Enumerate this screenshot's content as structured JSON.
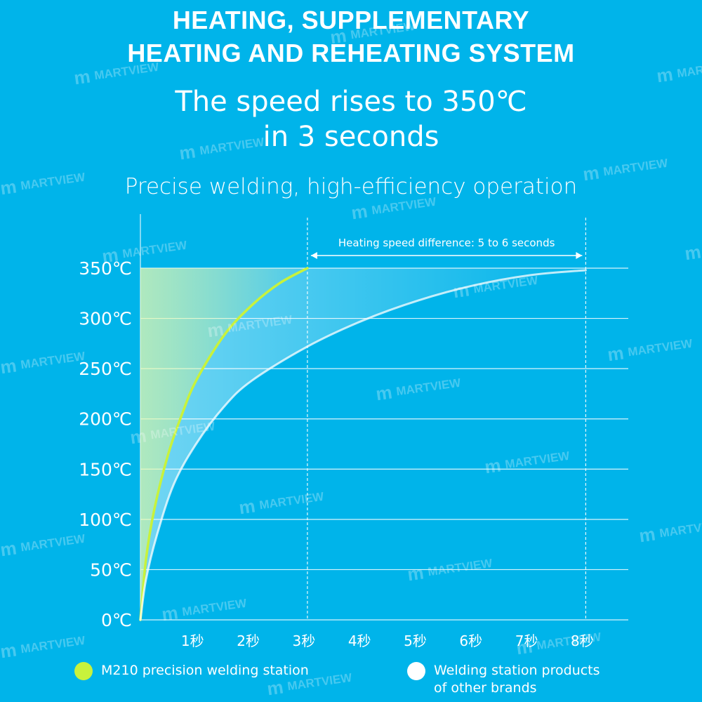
{
  "header": {
    "title_line1": "HEATING, SUPPLEMENTARY",
    "title_line2": "HEATING AND REHEATING SYSTEM",
    "subtitle_line1": "The speed rises to 350℃",
    "subtitle_line2": "in 3 seconds",
    "tagline": "Precise welding, high-efficiency operation"
  },
  "watermark": {
    "text": "MARTVIEW"
  },
  "colors": {
    "background": "#00b4ea",
    "m210_curve": "#c8f23c",
    "other_curve": "#ffffff",
    "grid": "#ffffff"
  },
  "chart_data": {
    "type": "line",
    "title": "",
    "xlabel": "",
    "ylabel": "",
    "x_ticks": [
      "1秒",
      "2秒",
      "3秒",
      "4秒",
      "5秒",
      "6秒",
      "7秒",
      "8秒"
    ],
    "y_ticks": [
      "0℃",
      "50℃",
      "100℃",
      "150℃",
      "200℃",
      "250℃",
      "300℃",
      "350℃"
    ],
    "xlim": [
      0,
      8.5
    ],
    "ylim": [
      0,
      350
    ],
    "grid": true,
    "series": [
      {
        "name": "M210 precision welding station",
        "color": "#c8f23c",
        "x": [
          0,
          0.1,
          0.25,
          0.5,
          0.75,
          1,
          1.5,
          2,
          2.5,
          3
        ],
        "y": [
          0,
          60,
          110,
          165,
          205,
          238,
          283,
          313,
          335,
          350
        ]
      },
      {
        "name": "Welding station products of other brands",
        "color": "#ffffff",
        "x": [
          0,
          0.1,
          0.3,
          0.6,
          1,
          1.5,
          2,
          3,
          4,
          5,
          6,
          7,
          8
        ],
        "y": [
          0,
          40,
          85,
          135,
          175,
          212,
          238,
          272,
          298,
          318,
          333,
          343,
          348
        ]
      }
    ],
    "markers": [
      {
        "x": 3,
        "style": "dashed"
      },
      {
        "x": 8,
        "style": "dashed"
      }
    ],
    "annotation": {
      "text": "Heating speed difference: 5 to 6 seconds",
      "from_x": 3,
      "to_x": 8
    },
    "legend": {
      "position": "bottom",
      "items": [
        {
          "label": "M210 precision welding station",
          "color": "#c8f23c"
        },
        {
          "label": "Welding station products\nof other brands",
          "color": "#ffffff"
        }
      ]
    }
  }
}
